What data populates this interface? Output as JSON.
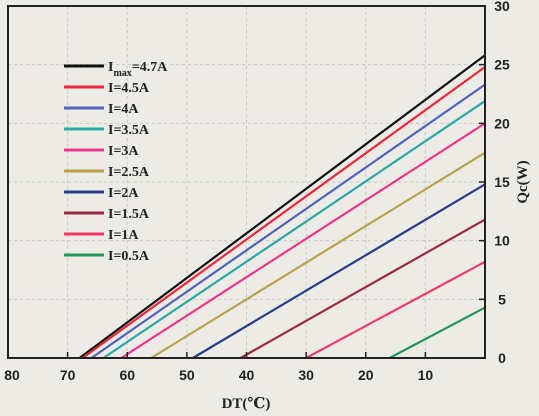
{
  "chart_data": {
    "type": "line",
    "title": "",
    "xlabel": "DT(℃)",
    "ylabel": "Qc(W)",
    "xlim": [
      80,
      0
    ],
    "ylim": [
      0,
      30
    ],
    "x_ticks": [
      80,
      70,
      60,
      50,
      40,
      30,
      20,
      10
    ],
    "y_ticks": [
      0,
      5,
      10,
      15,
      20,
      25,
      30
    ],
    "x_reversed": true,
    "y_axis_side": "right",
    "grid": true,
    "legend_position": "top-left",
    "series": [
      {
        "name": "I",
        "name_sub": "max",
        "name_suffix": "=4.7A",
        "color": "#111111",
        "x": [
          68,
          0
        ],
        "y": [
          0,
          25.8
        ]
      },
      {
        "name": "I=4.5A",
        "color": "#e8283c",
        "x": [
          67.5,
          0
        ],
        "y": [
          0,
          24.8
        ]
      },
      {
        "name": "I=4A",
        "color": "#4f63b8",
        "x": [
          66,
          0
        ],
        "y": [
          0,
          23.3
        ]
      },
      {
        "name": "I=3.5A",
        "color": "#2aa7a8",
        "x": [
          64,
          0
        ],
        "y": [
          0,
          21.9
        ]
      },
      {
        "name": "I=3A",
        "color": "#e8388c",
        "x": [
          61,
          0
        ],
        "y": [
          0,
          20.0
        ]
      },
      {
        "name": "I=2.5A",
        "color": "#b8a24a",
        "x": [
          56,
          0
        ],
        "y": [
          0,
          17.5
        ]
      },
      {
        "name": "I=2A",
        "color": "#283c88",
        "x": [
          49,
          0
        ],
        "y": [
          0,
          14.8
        ]
      },
      {
        "name": "I=1.5A",
        "color": "#9a2a44",
        "x": [
          41,
          0
        ],
        "y": [
          0,
          11.8
        ]
      },
      {
        "name": "I=1A",
        "color": "#ee3a64",
        "x": [
          30,
          0
        ],
        "y": [
          0,
          8.2
        ]
      },
      {
        "name": "I=0.5A",
        "color": "#22965a",
        "x": [
          16,
          0
        ],
        "y": [
          0,
          4.3
        ]
      }
    ]
  }
}
